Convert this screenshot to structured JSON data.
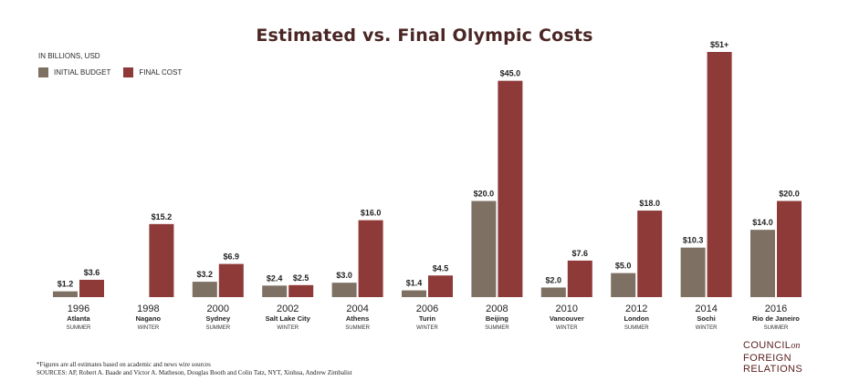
{
  "title": "Estimated vs. Final Olympic Costs",
  "unit_label": "IN BILLIONS, USD",
  "colors": {
    "initial": "#7e7164",
    "final": "#8e3a39",
    "title": "#4a2624",
    "logo": "#5b2120"
  },
  "chart_data": {
    "type": "bar",
    "title": "Estimated vs. Final Olympic Costs",
    "ylabel": "IN BILLIONS, USD",
    "ylim": [
      0,
      51
    ],
    "grid": false,
    "legend_position": "top-left",
    "categories": [
      {
        "year": "1996",
        "city": "Atlanta",
        "season": "SUMMER"
      },
      {
        "year": "1998",
        "city": "Nagano",
        "season": "WINTER"
      },
      {
        "year": "2000",
        "city": "Sydney",
        "season": "SUMMER"
      },
      {
        "year": "2002",
        "city": "Salt Lake City",
        "season": "WINTER"
      },
      {
        "year": "2004",
        "city": "Athens",
        "season": "SUMMER"
      },
      {
        "year": "2006",
        "city": "Turin",
        "season": "WINTER"
      },
      {
        "year": "2008",
        "city": "Beijing",
        "season": "SUMMER"
      },
      {
        "year": "2010",
        "city": "Vancouver",
        "season": "WINTER"
      },
      {
        "year": "2012",
        "city": "London",
        "season": "SUMMER"
      },
      {
        "year": "2014",
        "city": "Sochi",
        "season": "WINTER"
      },
      {
        "year": "2016",
        "city": "Rio de Janeiro",
        "season": "SUMMER"
      }
    ],
    "series": [
      {
        "name": "INITIAL BUDGET",
        "color": "#7e7164",
        "values": [
          1.2,
          null,
          3.2,
          2.4,
          3.0,
          1.4,
          20.0,
          2.0,
          5.0,
          10.3,
          14.0
        ],
        "labels": [
          "$1.2",
          "",
          "$3.2",
          "$2.4",
          "$3.0",
          "$1.4",
          "$20.0",
          "$2.0",
          "$5.0",
          "$10.3",
          "$14.0"
        ]
      },
      {
        "name": "FINAL COST",
        "color": "#8e3a39",
        "values": [
          3.6,
          15.2,
          6.9,
          2.5,
          16.0,
          4.5,
          45.0,
          7.6,
          18.0,
          51,
          20.0
        ],
        "labels": [
          "$3.6",
          "$15.2",
          "$6.9",
          "$2.5",
          "$16.0",
          "$4.5",
          "$45.0",
          "$7.6",
          "$18.0",
          "$51+",
          "$20.0"
        ]
      }
    ]
  },
  "footnote": {
    "line1": "*Figures are all estimates based on academic and news wire sources",
    "line2": "SOURCES: AP, Robert A. Baade and Victor A. Matheson, Douglas Booth and Colin Tatz, NYT, Xinhua, Andrew Zimbalist"
  },
  "logo": {
    "line1_a": "COUNCIL",
    "line1_b": "on",
    "line2": "FOREIGN",
    "line3": "RELATIONS"
  }
}
